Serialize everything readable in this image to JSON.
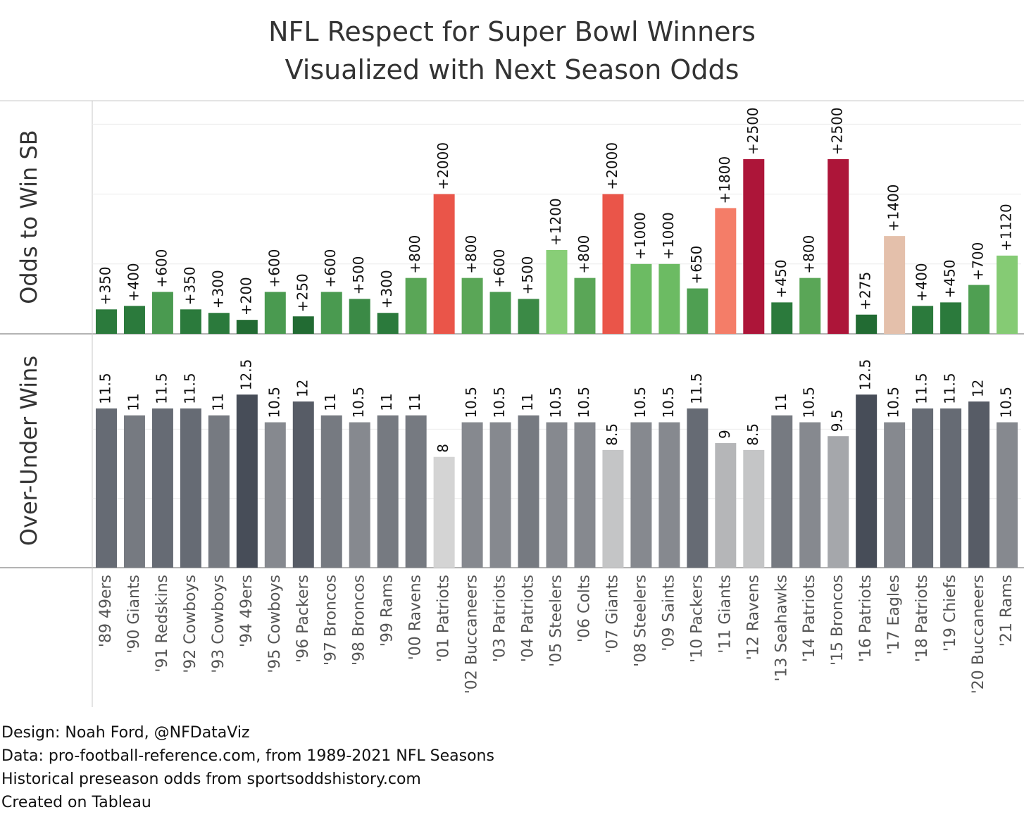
{
  "title": [
    "NFL Respect for Super Bowl Winners",
    "Visualized with Next Season Odds"
  ],
  "footer": [
    "Design: Noah Ford, @NFDataViz",
    "Data: pro-football-reference.com, from 1989-2021 NFL Seasons",
    "Historical preseason odds from sportsoddshistory.com",
    "Created on Tableau"
  ],
  "chart_data": [
    {
      "type": "bar",
      "ylabel": "Odds to Win SB",
      "ylim": [
        0,
        3000
      ],
      "grid": true,
      "categories": [
        "'89 49ers",
        "'90 Giants",
        "'91 Redskins",
        "'92 Cowboys",
        "'93 Cowboys",
        "'94 49ers",
        "'95 Cowboys",
        "'96 Packers",
        "'97 Broncos",
        "'98 Broncos",
        "'99 Rams",
        "'00 Ravens",
        "'01 Patriots",
        "'02 Buccaneers",
        "'03 Patriots",
        "'04 Patriots",
        "'05 Steelers",
        "'06 Colts",
        "'07 Giants",
        "'08 Steelers",
        "'09 Saints",
        "'10 Packers",
        "'11 Giants",
        "'12 Ravens",
        "'13 Seahawks",
        "'14 Patriots",
        "'15 Broncos",
        "'16 Patriots",
        "'17 Eagles",
        "'18 Patriots",
        "'19 Chiefs",
        "'20 Buccaneers",
        "'21 Rams"
      ],
      "values": [
        350,
        400,
        600,
        350,
        300,
        200,
        600,
        250,
        600,
        500,
        300,
        800,
        2000,
        800,
        600,
        500,
        1200,
        800,
        2000,
        1000,
        1000,
        650,
        1800,
        2500,
        450,
        800,
        2500,
        275,
        1400,
        400,
        450,
        700,
        1120
      ],
      "labels": [
        "+350",
        "+400",
        "+600",
        "+350",
        "+300",
        "+200",
        "+600",
        "+250",
        "+600",
        "+500",
        "+300",
        "+800",
        "+2000",
        "+800",
        "+600",
        "+500",
        "+1200",
        "+800",
        "+2000",
        "+1000",
        "+1000",
        "+650",
        "+1800",
        "+2500",
        "+450",
        "+800",
        "+2500",
        "+275",
        "+1400",
        "+400",
        "+450",
        "+700",
        "+1120"
      ],
      "colors": [
        "#2b7a3c",
        "#2b7a3c",
        "#4a9a50",
        "#2b7a3c",
        "#2b7a3c",
        "#226b33",
        "#4a9a50",
        "#226b33",
        "#4a9a50",
        "#3b8a46",
        "#2b7a3c",
        "#5aa657",
        "#ea5549",
        "#5aa657",
        "#4a9a50",
        "#3b8a46",
        "#88ce77",
        "#5aa657",
        "#ea5549",
        "#6cbb63",
        "#6cbb63",
        "#4f9f52",
        "#f47d68",
        "#ad1539",
        "#2b7a3c",
        "#5aa657",
        "#ad1539",
        "#226b33",
        "#e4c0ab",
        "#2b7a3c",
        "#2b7a3c",
        "#4f9f52",
        "#85cb74"
      ]
    },
    {
      "type": "bar",
      "ylabel": "Over-Under Wins",
      "ylim": [
        0,
        16
      ],
      "grid": true,
      "categories": [
        "'89 49ers",
        "'90 Giants",
        "'91 Redskins",
        "'92 Cowboys",
        "'93 Cowboys",
        "'94 49ers",
        "'95 Cowboys",
        "'96 Packers",
        "'97 Broncos",
        "'98 Broncos",
        "'99 Rams",
        "'00 Ravens",
        "'01 Patriots",
        "'02 Buccaneers",
        "'03 Patriots",
        "'04 Patriots",
        "'05 Steelers",
        "'06 Colts",
        "'07 Giants",
        "'08 Steelers",
        "'09 Saints",
        "'10 Packers",
        "'11 Giants",
        "'12 Ravens",
        "'13 Seahawks",
        "'14 Patriots",
        "'15 Broncos",
        "'16 Patriots",
        "'17 Eagles",
        "'18 Patriots",
        "'19 Chiefs",
        "'20 Buccaneers",
        "'21 Rams"
      ],
      "values": [
        11.5,
        11,
        11.5,
        11.5,
        11,
        12.5,
        10.5,
        12,
        11,
        10.5,
        11,
        11,
        8,
        10.5,
        10.5,
        11,
        10.5,
        10.5,
        8.5,
        10.5,
        10.5,
        11.5,
        9,
        8.5,
        11,
        10.5,
        9.5,
        12.5,
        10.5,
        11.5,
        11.5,
        12,
        10.5
      ],
      "labels": [
        "11.5",
        "11",
        "11.5",
        "11.5",
        "11",
        "12.5",
        "10.5",
        "12",
        "11",
        "10.5",
        "11",
        "11",
        "8",
        "10.5",
        "10.5",
        "11",
        "10.5",
        "10.5",
        "8.5",
        "10.5",
        "10.5",
        "11.5",
        "9",
        "8.5",
        "11",
        "10.5",
        "9.5",
        "12.5",
        "10.5",
        "11.5",
        "11.5",
        "12",
        "10.5"
      ]
    }
  ]
}
